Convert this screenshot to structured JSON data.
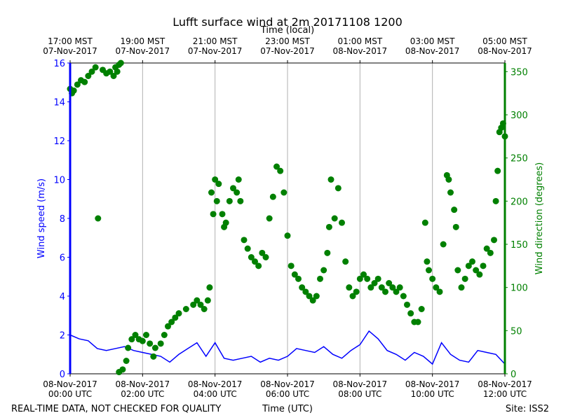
{
  "chart_data": {
    "type": "line+scatter",
    "title": "Lufft surface wind at 2m 20171108 1200",
    "top_axis_label": "Time (local)",
    "xlabel": "Time (UTC)",
    "ylabel": "Wind speed (m/s)",
    "y2label": "Wind direction (degrees)",
    "footer_left": "REAL-TIME DATA, NOT CHECKED FOR QUALITY",
    "footer_right": "Site: ISS2",
    "xlim": [
      0,
      12
    ],
    "xticks": [
      {
        "value": 0,
        "label": "08-Nov-2017\n00:00 UTC"
      },
      {
        "value": 2,
        "label": "08-Nov-2017\n02:00 UTC"
      },
      {
        "value": 4,
        "label": "08-Nov-2017\n04:00 UTC"
      },
      {
        "value": 6,
        "label": "08-Nov-2017\n06:00 UTC"
      },
      {
        "value": 8,
        "label": "08-Nov-2017\n08:00 UTC"
      },
      {
        "value": 10,
        "label": "08-Nov-2017\n10:00 UTC"
      },
      {
        "value": 12,
        "label": "08-Nov-2017\n12:00 UTC"
      }
    ],
    "x2ticks": [
      {
        "value": 0,
        "label": "17:00 MST\n07-Nov-2017"
      },
      {
        "value": 2,
        "label": "19:00 MST\n07-Nov-2017"
      },
      {
        "value": 4,
        "label": "21:00 MST\n07-Nov-2017"
      },
      {
        "value": 6,
        "label": "23:00 MST\n07-Nov-2017"
      },
      {
        "value": 8,
        "label": "01:00 MST\n08-Nov-2017"
      },
      {
        "value": 10,
        "label": "03:00 MST\n08-Nov-2017"
      },
      {
        "value": 12,
        "label": "05:00 MST\n08-Nov-2017"
      }
    ],
    "ylim": [
      0,
      16
    ],
    "yticks": [
      0,
      2,
      4,
      6,
      8,
      10,
      12,
      14,
      16
    ],
    "y2lim": [
      0,
      360
    ],
    "y2ticks": [
      0,
      50,
      100,
      150,
      200,
      250,
      300,
      350
    ],
    "grid": true,
    "series": [
      {
        "type": "line",
        "color": "#0000ff",
        "x": [
          0,
          0.25,
          0.5,
          0.75,
          1,
          1.25,
          1.5,
          1.75,
          2,
          2.25,
          2.5,
          2.75,
          3,
          3.25,
          3.5,
          3.75,
          4,
          4.25,
          4.5,
          4.75,
          5,
          5.25,
          5.5,
          5.75,
          6,
          6.25,
          6.5,
          6.75,
          7,
          7.25,
          7.5,
          7.75,
          8,
          8.25,
          8.5,
          8.75,
          9,
          9.25,
          9.5,
          9.75,
          10,
          10.25,
          10.5,
          10.75,
          11,
          11.25,
          11.5,
          11.75,
          12
        ],
        "values": [
          2.0,
          1.8,
          1.7,
          1.3,
          1.2,
          1.3,
          1.4,
          1.2,
          1.1,
          1.0,
          0.9,
          0.6,
          1.0,
          1.3,
          1.6,
          0.9,
          1.6,
          0.8,
          0.7,
          0.8,
          0.9,
          0.6,
          0.8,
          0.7,
          0.9,
          1.3,
          1.2,
          1.1,
          1.4,
          1.0,
          0.8,
          1.2,
          1.5,
          2.2,
          1.8,
          1.2,
          1.0,
          0.7,
          1.1,
          0.9,
          0.5,
          1.6,
          1.0,
          0.7,
          0.6,
          1.2,
          1.1,
          1.0,
          0.5
        ]
      },
      {
        "type": "scatter",
        "axis": "y2",
        "color": "#008000",
        "x": [
          0,
          0.05,
          0.1,
          0.2,
          0.3,
          0.4,
          0.5,
          0.6,
          0.7,
          0.77,
          0.9,
          1.0,
          1.1,
          1.2,
          1.25,
          1.3,
          1.35,
          1.4,
          1.35,
          1.45,
          1.55,
          1.6,
          1.7,
          1.8,
          1.9,
          2.0,
          2.1,
          2.2,
          2.3,
          2.35,
          2.5,
          2.6,
          2.7,
          2.8,
          2.9,
          3.0,
          3.2,
          3.4,
          3.5,
          3.6,
          3.7,
          3.8,
          3.85,
          3.9,
          3.95,
          4.0,
          4.05,
          4.1,
          4.2,
          4.25,
          4.3,
          4.4,
          4.5,
          4.6,
          4.65,
          4.7,
          4.8,
          4.9,
          5.0,
          5.1,
          5.2,
          5.3,
          5.4,
          5.5,
          5.6,
          5.7,
          5.8,
          5.9,
          6.0,
          6.1,
          6.2,
          6.3,
          6.4,
          6.5,
          6.6,
          6.7,
          6.8,
          6.9,
          7.0,
          7.1,
          7.15,
          7.2,
          7.3,
          7.4,
          7.5,
          7.6,
          7.7,
          7.8,
          7.9,
          8.0,
          8.1,
          8.2,
          8.3,
          8.4,
          8.5,
          8.6,
          8.7,
          8.8,
          8.9,
          9.0,
          9.1,
          9.2,
          9.3,
          9.4,
          9.5,
          9.6,
          9.7,
          9.8,
          9.85,
          9.9,
          10.0,
          10.1,
          10.2,
          10.3,
          10.4,
          10.45,
          10.5,
          10.6,
          10.65,
          10.7,
          10.8,
          10.9,
          11.0,
          11.1,
          11.2,
          11.3,
          11.4,
          11.5,
          11.6,
          11.7,
          11.75,
          11.8,
          11.85,
          11.9,
          11.95,
          12.0
        ],
        "values": [
          330,
          325,
          328,
          335,
          340,
          338,
          345,
          350,
          355,
          180,
          352,
          348,
          350,
          345,
          355,
          350,
          358,
          360,
          2,
          5,
          15,
          30,
          40,
          45,
          40,
          38,
          45,
          35,
          20,
          30,
          35,
          45,
          55,
          60,
          65,
          70,
          75,
          80,
          85,
          80,
          75,
          85,
          100,
          210,
          185,
          225,
          200,
          220,
          185,
          170,
          175,
          200,
          215,
          210,
          225,
          200,
          155,
          145,
          135,
          130,
          125,
          140,
          135,
          180,
          205,
          240,
          235,
          210,
          160,
          125,
          115,
          110,
          100,
          95,
          90,
          85,
          90,
          110,
          120,
          140,
          170,
          225,
          180,
          215,
          175,
          130,
          100,
          90,
          95,
          110,
          115,
          110,
          100,
          105,
          110,
          100,
          95,
          105,
          100,
          95,
          100,
          90,
          80,
          70,
          60,
          60,
          75,
          175,
          130,
          120,
          110,
          100,
          95,
          150,
          230,
          225,
          210,
          190,
          170,
          120,
          100,
          110,
          125,
          130,
          120,
          115,
          125,
          145,
          140,
          155,
          200,
          235,
          280,
          285,
          290,
          275
        ]
      }
    ]
  }
}
